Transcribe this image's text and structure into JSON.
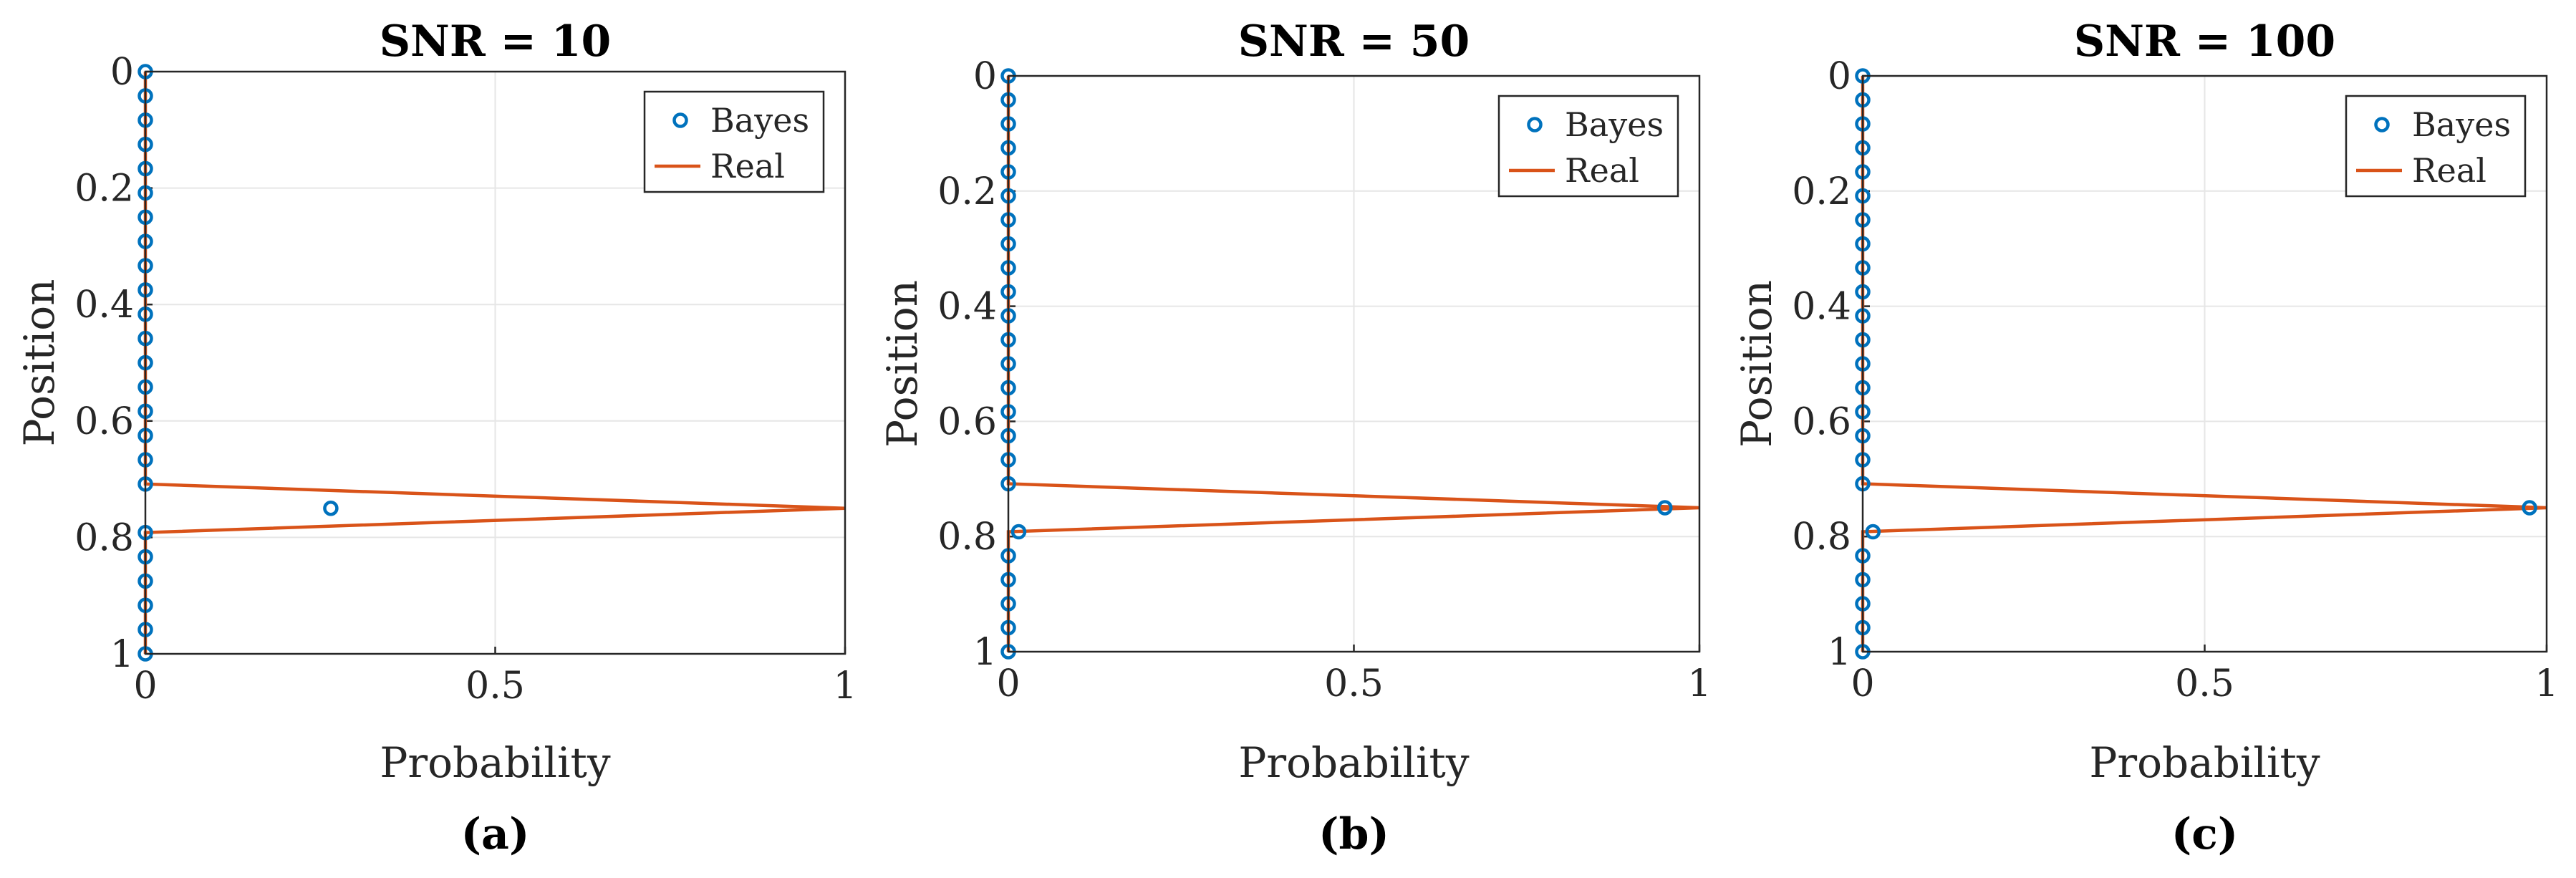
{
  "chart_data": [
    {
      "type": "scatter",
      "title": "SNR = 10",
      "caption": "(a)",
      "xlabel": "Probability",
      "ylabel": "Position",
      "xlim": [
        0,
        1
      ],
      "ylim": [
        0,
        1
      ],
      "y_reversed": true,
      "xticks": [
        0,
        0.5,
        1
      ],
      "xtick_labels": [
        "0",
        "0.5",
        "1"
      ],
      "yticks": [
        0,
        0.2,
        0.4,
        0.6,
        0.8,
        1
      ],
      "ytick_labels": [
        "0",
        "0.2",
        "0.4",
        "0.6",
        "0.8",
        "1"
      ],
      "grid": true,
      "legend": {
        "position": "top-right",
        "entries": [
          "Bayes",
          "Real"
        ]
      },
      "series": [
        {
          "name": "Bayes",
          "style": "markers",
          "x": [
            0,
            0,
            0,
            0,
            0,
            0,
            0,
            0,
            0,
            0,
            0,
            0,
            0,
            0,
            0,
            0,
            0,
            0,
            0.265,
            0,
            0,
            0,
            0,
            0,
            0
          ],
          "y": [
            0,
            0.0417,
            0.0833,
            0.125,
            0.1667,
            0.2083,
            0.25,
            0.2917,
            0.3333,
            0.375,
            0.4167,
            0.4583,
            0.5,
            0.5417,
            0.5833,
            0.625,
            0.6667,
            0.7083,
            0.75,
            0.7917,
            0.8333,
            0.875,
            0.9167,
            0.9583,
            1
          ]
        },
        {
          "name": "Real",
          "style": "line",
          "x": [
            0,
            0,
            1,
            0,
            0
          ],
          "y": [
            0,
            0.7083,
            0.75,
            0.7917,
            1
          ]
        }
      ]
    },
    {
      "type": "scatter",
      "title": "SNR = 50",
      "caption": "(b)",
      "xlabel": "Probability",
      "ylabel": "Position",
      "xlim": [
        0,
        1
      ],
      "ylim": [
        0,
        1
      ],
      "y_reversed": true,
      "xticks": [
        0,
        0.5,
        1
      ],
      "xtick_labels": [
        "0",
        "0.5",
        "1"
      ],
      "yticks": [
        0,
        0.2,
        0.4,
        0.6,
        0.8,
        1
      ],
      "ytick_labels": [
        "0",
        "0.2",
        "0.4",
        "0.6",
        "0.8",
        "1"
      ],
      "grid": true,
      "legend": {
        "position": "top-right",
        "entries": [
          "Bayes",
          "Real"
        ]
      },
      "series": [
        {
          "name": "Bayes",
          "style": "markers",
          "x": [
            0,
            0,
            0,
            0,
            0,
            0,
            0,
            0,
            0,
            0,
            0,
            0,
            0,
            0,
            0,
            0,
            0,
            0,
            0.95,
            0.015,
            0,
            0,
            0,
            0,
            0
          ],
          "y": [
            0,
            0.0417,
            0.0833,
            0.125,
            0.1667,
            0.2083,
            0.25,
            0.2917,
            0.3333,
            0.375,
            0.4167,
            0.4583,
            0.5,
            0.5417,
            0.5833,
            0.625,
            0.6667,
            0.7083,
            0.75,
            0.7917,
            0.8333,
            0.875,
            0.9167,
            0.9583,
            1
          ]
        },
        {
          "name": "Real",
          "style": "line",
          "x": [
            0,
            0,
            1,
            0,
            0
          ],
          "y": [
            0,
            0.7083,
            0.75,
            0.7917,
            1
          ]
        }
      ]
    },
    {
      "type": "scatter",
      "title": "SNR = 100",
      "caption": "(c)",
      "xlabel": "Probability",
      "ylabel": "Position",
      "xlim": [
        0,
        1
      ],
      "ylim": [
        0,
        1
      ],
      "y_reversed": true,
      "xticks": [
        0,
        0.5,
        1
      ],
      "xtick_labels": [
        "0",
        "0.5",
        "1"
      ],
      "yticks": [
        0,
        0.2,
        0.4,
        0.6,
        0.8,
        1
      ],
      "ytick_labels": [
        "0",
        "0.2",
        "0.4",
        "0.6",
        "0.8",
        "1"
      ],
      "grid": true,
      "legend": {
        "position": "top-right",
        "entries": [
          "Bayes",
          "Real"
        ]
      },
      "series": [
        {
          "name": "Bayes",
          "style": "markers",
          "x": [
            0,
            0,
            0,
            0,
            0,
            0,
            0,
            0,
            0,
            0,
            0,
            0,
            0,
            0,
            0,
            0,
            0,
            0,
            0.975,
            0.015,
            0,
            0,
            0,
            0,
            0
          ],
          "y": [
            0,
            0.0417,
            0.0833,
            0.125,
            0.1667,
            0.2083,
            0.25,
            0.2917,
            0.3333,
            0.375,
            0.4167,
            0.4583,
            0.5,
            0.5417,
            0.5833,
            0.625,
            0.6667,
            0.7083,
            0.75,
            0.7917,
            0.8333,
            0.875,
            0.9167,
            0.9583,
            1
          ]
        },
        {
          "name": "Real",
          "style": "line",
          "x": [
            0,
            0,
            1,
            0,
            0
          ],
          "y": [
            0,
            0.7083,
            0.75,
            0.7917,
            1
          ]
        }
      ]
    }
  ],
  "colors": {
    "bayes": "#0072bd",
    "real": "#d95319",
    "axis": "#262626",
    "grid": "#e6e6e6"
  }
}
